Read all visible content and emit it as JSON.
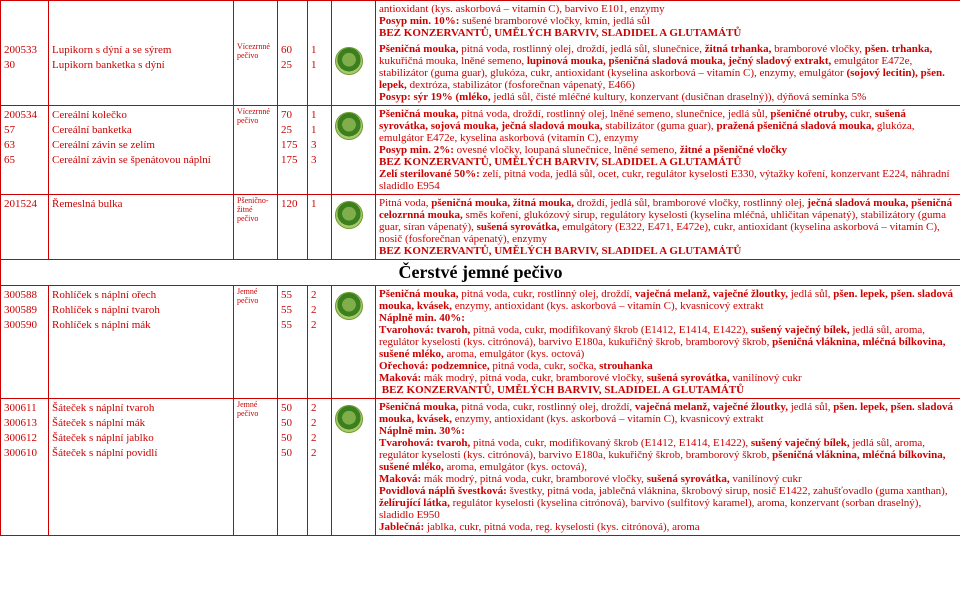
{
  "rows": [
    {
      "codes": [
        "200533",
        "30"
      ],
      "names": [
        "Lupikorn s dýní a se sýrem",
        "Lupikorn banketka s dýní"
      ],
      "cat": "Vícezrnné pečivo",
      "nums": [
        "60",
        "25"
      ],
      "n2s": [
        "1",
        "1"
      ],
      "desc_pre": "antioxidant (kys. askorbová – vitamín C), barvivo E101, enzymy\n<b>Posyp min. 10%:</b> sušené bramborové vločky, kmín, jedlá sůl\n<b>BEZ KONZERVANTŮ, UMĚLÝCH BARVIV, SLADIDEL A GLUTAMÁTŮ</b>",
      "desc": "<b>Pšeničná mouka,</b> pitná voda, rostlinný olej, droždí, jedlá sůl, slunečnice, <b>žitná trhanka,</b> bramborové vločky, <b>pšen. trhanka,</b> kukuřičná mouka, lněné semeno, <b>lupinová mouka, pšeničná sladová mouka, ječný sladový extrakt,</b> emulgátor E472e, stabilizátor (guma guar), glukóza, cukr, antioxidant (kyselina askorbová – vitamín C), enzymy, emulgátor <b>(sojový lecitin), pšen. lepek,</b> dextróza, stabilizátor (fosforečnan vápenatý, E466)\n<b>Posyp: sýr 19% (mléko,</b> jedlá sůl, čisté mléčné kultury, konzervant (dusičnan draselný)), dýňová semínka 5%"
    },
    {
      "codes": [
        "200534",
        "57",
        "63",
        "65"
      ],
      "names": [
        "Cereální kolečko",
        "Cereální banketka",
        "Cereální závin se zelím",
        "Cereální závin se špenátovou náplní"
      ],
      "cat": "Vícezrnné pečivo",
      "nums": [
        "70",
        "25",
        "175",
        "175"
      ],
      "n2s": [
        "1",
        "1",
        "3",
        "3"
      ],
      "desc": "<b>Pšeničná mouka,</b> pitná voda, droždí, rostlinný olej, lněné semeno, slunečnice, jedlá sůl, <b>pšeničné otruby,</b> cukr, <b>sušená syrovátka, sojová mouka, ječná sladová mouka,</b> stabilizátor (guma guar), <b>pražená pšeničná sladová mouka,</b> glukóza, emulgátor E472e, kyselina askorbová (vitamín C), enzymy\n<b>Posyp min. 2%:</b> ovesné vločky, loupaná slunečnice, lněné semeno, <b>žitné a pšeničné vločky</b>\n<b>BEZ KONZERVANTŮ, UMĚLÝCH BARVIV, SLADIDEL A GLUTAMÁTŮ</b>\n<b>Zelí sterilované 50%:</b> zelí, pitná voda, jedlá sůl, ocet, cukr, regulátor kyselosti E330, výtažky koření, konzervant E224, náhradní sladidlo E954"
    },
    {
      "codes": [
        "201524"
      ],
      "names": [
        "Řemeslná bulka"
      ],
      "cat": "Pšenično-žitné pečivo",
      "nums": [
        "120"
      ],
      "n2s": [
        "1"
      ],
      "desc": "Pitná voda, <b>pšeničná mouka, žitná mouka,</b> droždí, jedlá sůl, bramborové vločky, rostlinný olej, <b>ječná sladová mouka, pšeničná celozrnná mouka,</b> směs koření, glukózový sirup, regulátory kyselosti (kyselina mléčná, uhličitan vápenatý), stabilizátory (guma guar, síran vápenatý), <b>sušená syrovátka,</b> emulgátory (E322, E471, E472e), cukr, antioxidant (kyselina askorbová – vitamín C), nosič (fosforečnan vápenatý), enzymy\n<b>BEZ KONZERVANTŮ, UMĚLÝCH BARVIV, SLADIDEL A GLUTAMÁTŮ</b>"
    }
  ],
  "section_heading": "Čerstvé jemné pečivo",
  "rows2": [
    {
      "codes": [
        "300588",
        "300589",
        "300590"
      ],
      "names": [
        "Rohlíček s náplní ořech",
        "Rohlíček s náplní tvaroh",
        "Rohlíček s náplní mák"
      ],
      "cat": "Jemné pečivo",
      "nums": [
        "55",
        "55",
        "55"
      ],
      "n2s": [
        "2",
        "2",
        "2"
      ],
      "desc": "<b>Pšeničná mouka,</b> pitná voda, cukr, rostlinný olej, droždí, <b>vaječná melanž, vaječné žloutky,</b> jedlá sůl, <b>pšen. lepek, pšen. sladová mouka, kvásek,</b> enzymy, antioxidant (kys. askorbová – vitamín C), kvasnicový extrakt\n<b>Náplně min. 40%:</b>\n<b>Tvarohová: tvaroh,</b> pitná voda, cukr, modifikovaný škrob (E1412, E1414, E1422), <b>sušený vaječný bílek,</b> jedlá sůl, aroma, regulátor kyselosti (kys. citrónová), barvivo E180a, kukuřičný škrob, bramborový škrob, <b>pšeničná vláknina, mléčná bílkovina, sušené mléko,</b> aroma, emulgátor (kys. octová)\n<b>Ořechová: podzemnice,</b> pitná voda, cukr, sočka, <b>strouhanka</b>\n<b>Maková:</b> mák modrý, pitná voda, cukr, bramborové vločky, <b>sušená syrovátka,</b> vanilínový cukr\n<b>&nbsp;BEZ KONZERVANTŮ, UMĚLÝCH BARVIV, SLADIDEL A GLUTAMÁTŮ</b>"
    },
    {
      "codes": [
        "300611",
        "300613",
        "300612",
        "300610"
      ],
      "names": [
        "Šáteček s náplní tvaroh",
        "Šáteček s náplní mák",
        "Šáteček s náplní jablko",
        "Šáteček s náplní povidlí"
      ],
      "cat": "Jemné pečivo",
      "nums": [
        "50",
        "50",
        "50",
        "50"
      ],
      "n2s": [
        "2",
        "2",
        "2",
        "2"
      ],
      "desc": "<b>Pšeničná mouka,</b> pitná voda, cukr, rostlinný olej, droždí, <b>vaječná melanž, vaječné žloutky,</b> jedlá sůl, <b>pšen. lepek, pšen. sladová mouka, kvásek,</b> enzymy, antioxidant (kys. askorbová – vitamín C), kvasnicový extrakt\n<b>Náplně min. 30%:</b>\n<b>Tvarohová: tvaroh,</b> pitná voda, cukr, modifikovaný škrob (E1412, E1414, E1422), <b>sušený vaječný bílek,</b> jedlá sůl, aroma, regulátor kyselosti (kys. citrónová), barvivo E180a, kukuřičný škrob, bramborový škrob, <b>pšeničná vláknina, mléčná bílkovina, sušené mléko,</b> aroma, emulgátor (kys. octová),\n<b>Maková:</b> mák modrý, pitná voda, cukr, bramborové vločky, <b>sušená syrovátka,</b> vanilínový cukr\n<b>Povidlová náplň švestková:</b> švestky, pitná voda, jablečná vláknina, škrobový sirup, nosič E1422, zahušťovadlo (guma xanthan), <b>želírující látka,</b> regulátor kyselosti (kyselina citrónová), barvivo (sulfitový karamel), aroma, konzervant (sorban draselný), sladidlo E950\n<b>Jablečná:</b> jablka, cukr, pitná voda, reg. kyselosti (kys. citrónová), aroma"
    }
  ]
}
